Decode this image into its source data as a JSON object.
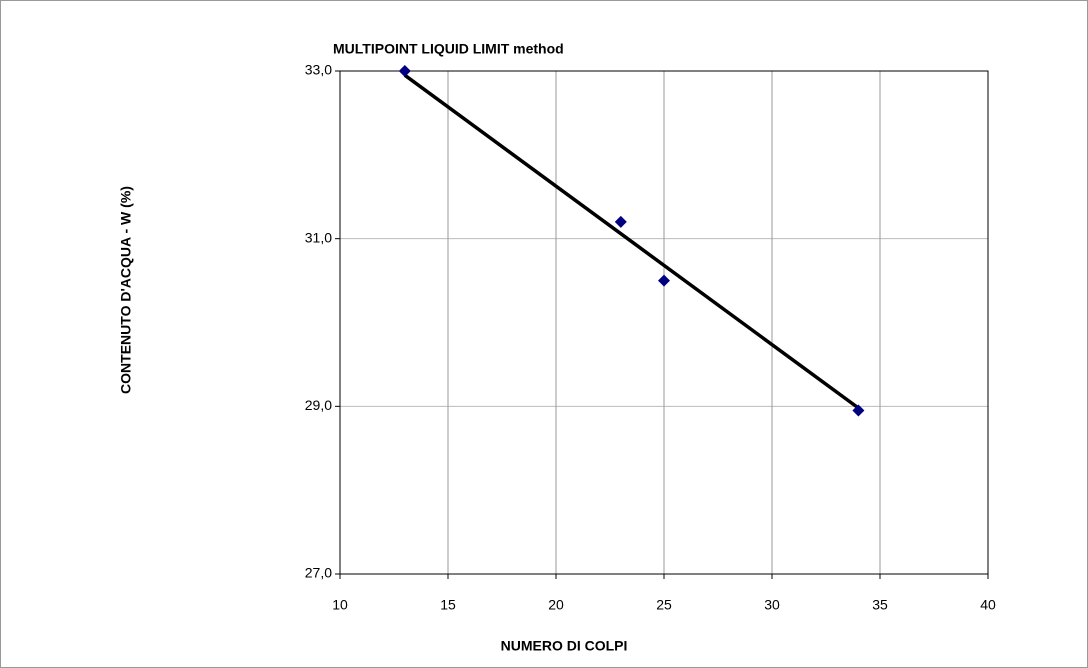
{
  "chart_data": {
    "type": "scatter",
    "title": "MULTIPOINT LIQUID LIMIT method",
    "x_label": "NUMERO DI COLPI",
    "y_label": "CONTENUTO D'ACQUA - W (%)",
    "x": [
      13,
      23,
      25,
      34
    ],
    "values": [
      33.0,
      31.2,
      30.5,
      28.95
    ],
    "color": "#000080",
    "trendline": {
      "x": [
        13,
        34
      ],
      "values": [
        32.95,
        28.98
      ],
      "color": "#000000"
    },
    "xlim": [
      10,
      40
    ],
    "xticks": [
      10,
      15,
      20,
      25,
      30,
      35,
      40
    ],
    "ylim": [
      27,
      33
    ],
    "yticks": [
      {
        "value": 27,
        "label": "27,0"
      },
      {
        "value": 29,
        "label": "29,0"
      },
      {
        "value": 31,
        "label": "31,0"
      },
      {
        "value": 33,
        "label": "33,0"
      }
    ],
    "grid": true
  }
}
